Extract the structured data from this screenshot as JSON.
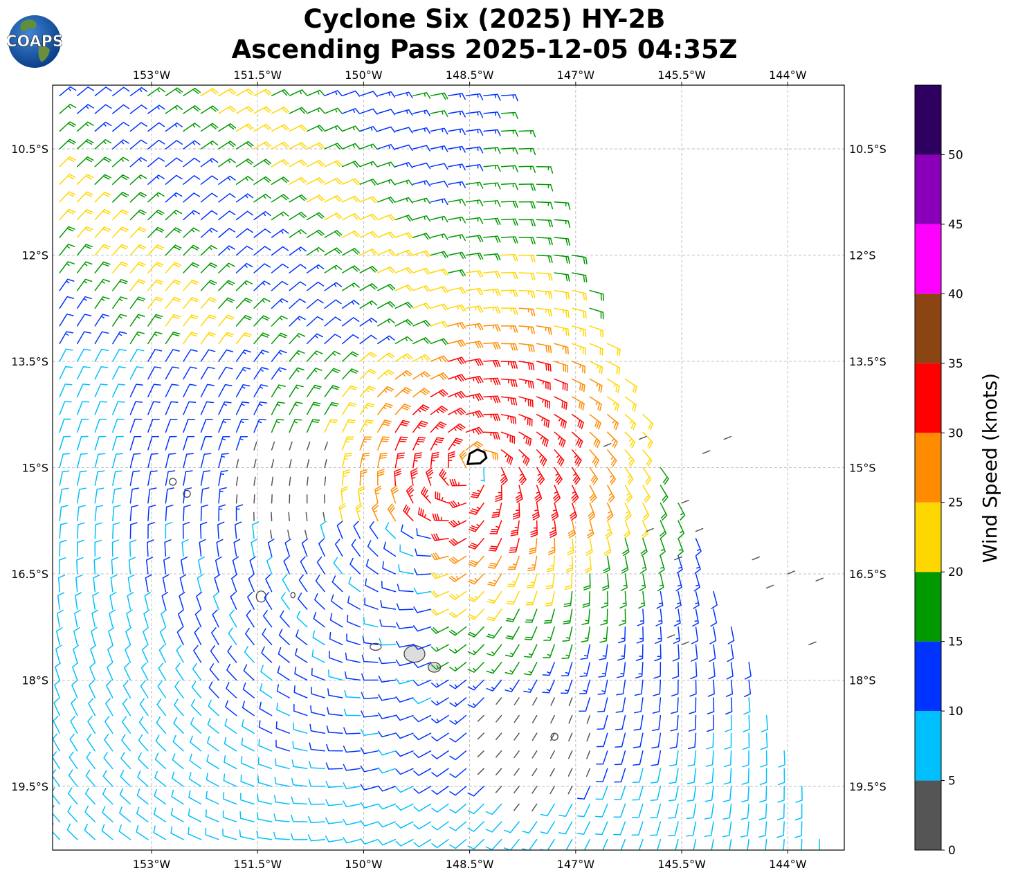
{
  "header": {
    "title_line1": "Cyclone Six (2025) HY-2B",
    "title_line2": "Ascending Pass 2025-12-05 04:35Z",
    "logo_text": "COAPS"
  },
  "chart_data": {
    "type": "wind-barb-map",
    "title": "Cyclone Six (2025) HY-2B Ascending Pass 2025-12-05 04:35Z",
    "x_axis": {
      "label": "",
      "range_deg_lon": [
        -154.4,
        -143.2
      ],
      "ticks": [
        -153,
        -151.5,
        -150,
        -148.5,
        -147,
        -145.5,
        -144
      ],
      "tick_labels": [
        "153°W",
        "151.5°W",
        "150°W",
        "148.5°W",
        "147°W",
        "145.5°W",
        "144°W"
      ]
    },
    "y_axis": {
      "label": "",
      "range_deg_lat": [
        -20.4,
        -9.6
      ],
      "ticks": [
        -10.5,
        -12,
        -13.5,
        -15,
        -16.5,
        -18,
        -19.5
      ],
      "tick_labels": [
        "10.5°S",
        "12°S",
        "13.5°S",
        "15°S",
        "16.5°S",
        "18°S",
        "19.5°S"
      ]
    },
    "grid": true,
    "storm_center": {
      "lon": -148.4,
      "lat": -14.9
    },
    "colorbar": {
      "label": "Wind Speed (knots)",
      "ticks": [
        0,
        5,
        10,
        15,
        20,
        25,
        30,
        35,
        40,
        45,
        50
      ],
      "bins": [
        {
          "min": 0,
          "max": 5,
          "color": "#555555"
        },
        {
          "min": 5,
          "max": 10,
          "color": "#00bfff"
        },
        {
          "min": 10,
          "max": 15,
          "color": "#0033ff"
        },
        {
          "min": 15,
          "max": 20,
          "color": "#009900"
        },
        {
          "min": 20,
          "max": 25,
          "color": "#ffd700"
        },
        {
          "min": 25,
          "max": 30,
          "color": "#ff8c00"
        },
        {
          "min": 30,
          "max": 35,
          "color": "#ff0000"
        },
        {
          "min": 35,
          "max": 40,
          "color": "#8b4513"
        },
        {
          "min": 40,
          "max": 45,
          "color": "#ff00ff"
        },
        {
          "min": 45,
          "max": 50,
          "color": "#8a00b8"
        },
        {
          "min": 50,
          "max": 55,
          "color": "#2e0060"
        }
      ]
    },
    "wind_field_summary": {
      "max_wind_kt": 34,
      "max_wind_location": "near storm center, NW quadrant",
      "swath_east_edge_lon": [
        -147.0,
        -143.5
      ],
      "light_wind_areas": [
        "around 151°W 15.3°S",
        "around 147.5°W 18.8°S"
      ]
    }
  }
}
